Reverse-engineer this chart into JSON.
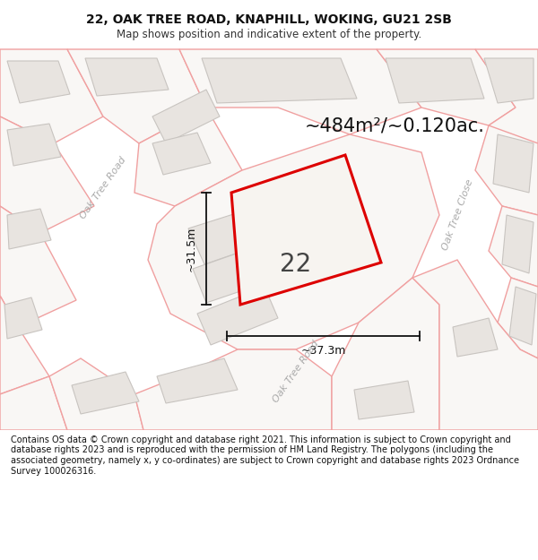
{
  "title_line1": "22, OAK TREE ROAD, KNAPHILL, WOKING, GU21 2SB",
  "title_line2": "Map shows position and indicative extent of the property.",
  "area_text": "~484m²/~0.120ac.",
  "number_label": "22",
  "dim_vertical": "~31.5m",
  "dim_horizontal": "~37.3m",
  "footer_text": "Contains OS data © Crown copyright and database right 2021. This information is subject to Crown copyright and database rights 2023 and is reproduced with the permission of HM Land Registry. The polygons (including the associated geometry, namely x, y co-ordinates) are subject to Crown copyright and database rights 2023 Ordnance Survey 100026316.",
  "map_bg": "#f7f4f0",
  "road_line_color": "#f0a0a0",
  "road_fill_color": "#f7f4f0",
  "building_fill": "#e8e4e0",
  "building_edge": "#c8c4c0",
  "highlight_color": "#dd0000",
  "highlight_fill": "#f7f4f0",
  "dim_color": "#111111",
  "label_color": "#aaaaaa",
  "title_color": "#111111",
  "subtitle_color": "#333333",
  "footer_bg": "#ffffff",
  "footer_color": "#111111"
}
